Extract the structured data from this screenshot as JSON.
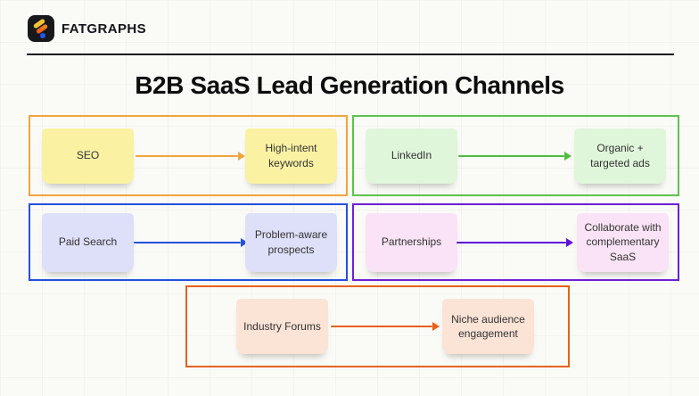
{
  "brand": {
    "name": "FATGRAPHS"
  },
  "title": "B2B SaaS Lead Generation Channels",
  "logo": {
    "background_color": "#17181c",
    "bar_yellow": "#f4c430",
    "bar_orange": "#e86a1e",
    "dot_blue": "#2458e6"
  },
  "channels": [
    {
      "id": "seo",
      "source": "SEO",
      "result": "High-intent keywords",
      "border_color": "#f2a43c",
      "arrow_color": "#f2a43c",
      "sticky_color": "#faf1a3"
    },
    {
      "id": "linkedin",
      "source": "LinkedIn",
      "result": "Organic + targeted ads",
      "border_color": "#5ec24d",
      "arrow_color": "#4ebe3f",
      "sticky_color": "#dff6da"
    },
    {
      "id": "paid-search",
      "source": "Paid Search",
      "result": "Problem-aware prospects",
      "border_color": "#2450e0",
      "arrow_color": "#2450e0",
      "sticky_color": "#dedff8"
    },
    {
      "id": "partnerships",
      "source": "Partnerships",
      "result": "Collaborate with complementary SaaS",
      "border_color": "#6d1fd8",
      "arrow_color": "#5e11dc",
      "sticky_color": "#fae3f6"
    },
    {
      "id": "industry-forums",
      "source": "Industry Forums",
      "result": "Niche audience engagement",
      "border_color": "#e8611c",
      "arrow_color": "#e8611c",
      "sticky_color": "#fbe3d6"
    }
  ]
}
